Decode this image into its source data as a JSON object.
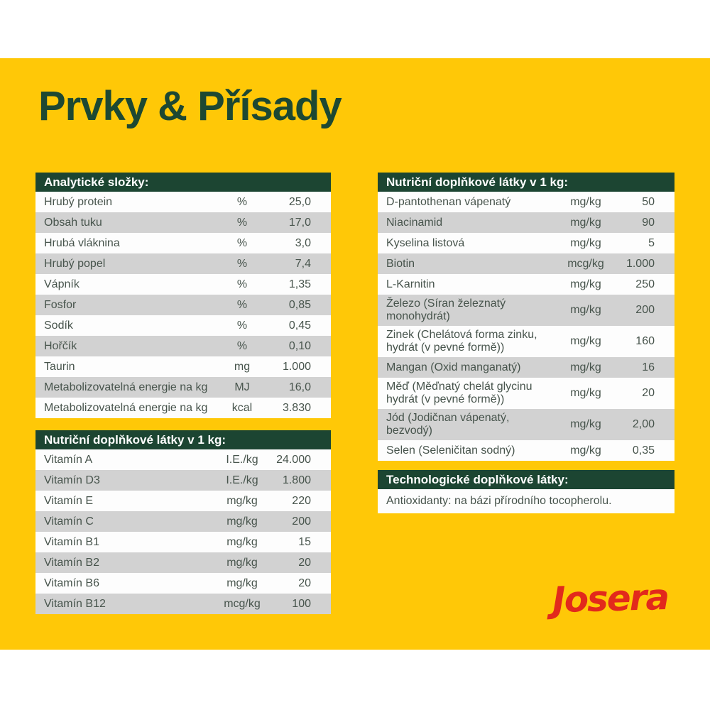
{
  "page": {
    "heading": "Prvky & Přísady",
    "brand": "Josera",
    "colors": {
      "background_yellow": "#ffc807",
      "header_green": "#1c4532",
      "heading_green": "#1d4832",
      "row_gray": "#d2d2d2",
      "row_white": "#fdfdfd",
      "row_text": "#47544c",
      "brand_red": "#e2291c"
    }
  },
  "tables": {
    "analytical": {
      "title": "Analytické složky:",
      "rows": [
        {
          "label": "Hrubý protein",
          "unit": "%",
          "value": "25,0"
        },
        {
          "label": "Obsah tuku",
          "unit": "%",
          "value": "17,0"
        },
        {
          "label": "Hrubá vláknina",
          "unit": "%",
          "value": "3,0"
        },
        {
          "label": "Hrubý popel",
          "unit": "%",
          "value": "7,4"
        },
        {
          "label": "Vápník",
          "unit": "%",
          "value": "1,35"
        },
        {
          "label": "Fosfor",
          "unit": "%",
          "value": "0,85"
        },
        {
          "label": "Sodík",
          "unit": "%",
          "value": "0,45"
        },
        {
          "label": "Hořčík",
          "unit": "%",
          "value": "0,10"
        },
        {
          "label": "Taurin",
          "unit": "mg",
          "value": "1.000"
        },
        {
          "label": "Metabolizovatelná energie na kg",
          "unit": "MJ",
          "value": "16,0"
        },
        {
          "label": "Metabolizovatelná energie na kg",
          "unit": "kcal",
          "value": "3.830"
        }
      ]
    },
    "vitamins": {
      "title": "Nutriční doplňkové látky v 1 kg:",
      "rows": [
        {
          "label": "Vitamín A",
          "unit": "I.E./kg",
          "value": "24.000"
        },
        {
          "label": "Vitamín D3",
          "unit": "I.E./kg",
          "value": "1.800"
        },
        {
          "label": "Vitamín E",
          "unit": "mg/kg",
          "value": "220"
        },
        {
          "label": "Vitamín C",
          "unit": "mg/kg",
          "value": "200"
        },
        {
          "label": "Vitamín B1",
          "unit": "mg/kg",
          "value": "15"
        },
        {
          "label": "Vitamín B2",
          "unit": "mg/kg",
          "value": "20"
        },
        {
          "label": "Vitamín B6",
          "unit": "mg/kg",
          "value": "20"
        },
        {
          "label": "Vitamín B12",
          "unit": "mcg/kg",
          "value": "100"
        }
      ]
    },
    "minerals": {
      "title": "Nutriční doplňkové látky v 1 kg:",
      "rows": [
        {
          "label": "D-pantothenan vápenatý",
          "unit": "mg/kg",
          "value": "50"
        },
        {
          "label": "Niacinamid",
          "unit": "mg/kg",
          "value": "90"
        },
        {
          "label": "Kyselina listová",
          "unit": "mg/kg",
          "value": "5"
        },
        {
          "label": "Biotin",
          "unit": "mcg/kg",
          "value": "1.000"
        },
        {
          "label": "L-Karnitin",
          "unit": "mg/kg",
          "value": "250"
        },
        {
          "label": "Železo (Síran železnatý monohydrát)",
          "unit": "mg/kg",
          "value": "200"
        },
        {
          "label": "Zinek (Chelátová forma zinku, hydrát (v pevné formě))",
          "unit": "mg/kg",
          "value": "160"
        },
        {
          "label": "Mangan (Oxid manganatý)",
          "unit": "mg/kg",
          "value": "16"
        },
        {
          "label": "Měď (Měďnatý chelát glycinu hydrát (v pevné formě))",
          "unit": "mg/kg",
          "value": "20"
        },
        {
          "label": "Jód (Jodičnan vápenatý, bezvodý)",
          "unit": "mg/kg",
          "value": "2,00"
        },
        {
          "label": "Selen (Seleničitan sodný)",
          "unit": "mg/kg",
          "value": "0,35"
        }
      ]
    },
    "technological": {
      "title": "Technologické doplňkové látky:",
      "rows": [
        {
          "label": "Antioxidanty: na bázi přírodního tocopherolu."
        }
      ]
    }
  }
}
